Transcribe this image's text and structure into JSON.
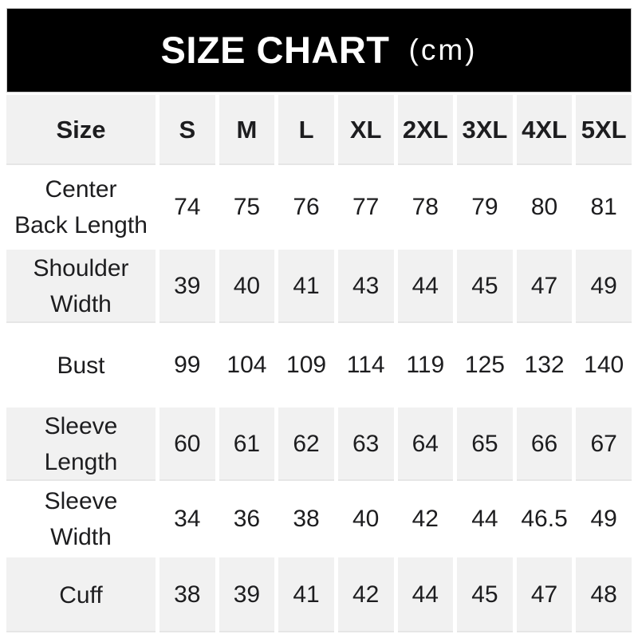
{
  "banner": {
    "title": "SIZE CHART",
    "unit": "(cm)"
  },
  "colors": {
    "banner_bg": "#000000",
    "banner_text": "#ffffff",
    "alt_row_bg": "#f1f1f1",
    "text": "#1d1d1f"
  },
  "chart_data": {
    "type": "table",
    "title": "SIZE CHART",
    "unit": "(cm)",
    "columns": [
      "Size",
      "S",
      "M",
      "L",
      "XL",
      "2XL",
      "3XL",
      "4XL",
      "5XL"
    ],
    "rows": [
      {
        "label": "Center\nBack Length",
        "values": [
          74,
          75,
          76,
          77,
          78,
          79,
          80,
          81
        ]
      },
      {
        "label": "Shoulder\nWidth",
        "values": [
          39,
          40,
          41,
          43,
          44,
          45,
          47,
          49
        ]
      },
      {
        "label": "Bust",
        "values": [
          99,
          104,
          109,
          114,
          119,
          125,
          132,
          140
        ]
      },
      {
        "label": "Sleeve\nLength",
        "values": [
          60,
          61,
          62,
          63,
          64,
          65,
          66,
          67
        ]
      },
      {
        "label": "Sleeve\nWidth",
        "values": [
          34,
          36,
          38,
          40,
          42,
          44,
          46.5,
          49
        ]
      },
      {
        "label": "Cuff",
        "values": [
          38,
          39,
          41,
          42,
          44,
          45,
          47,
          48
        ]
      }
    ]
  }
}
